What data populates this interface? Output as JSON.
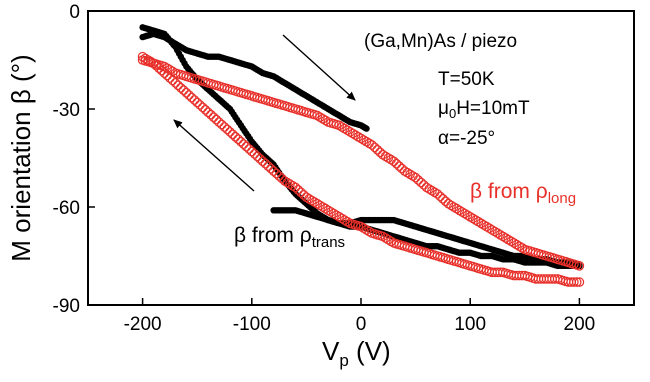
{
  "chart_data": {
    "type": "scatter",
    "xlabel": "V",
    "xlabel_sub": "p",
    "xlabel_unit": " (V)",
    "ylabel": "M orientation β (°)",
    "xlim": [
      -250,
      250
    ],
    "ylim": [
      -90,
      0
    ],
    "xticks": [
      -200,
      -100,
      0,
      100,
      200
    ],
    "yticks": [
      0,
      -30,
      -60,
      -90
    ],
    "grid": false,
    "colors": {
      "trans": "#000000",
      "long": "#e8302a"
    },
    "annotations": {
      "material": "(Ga,Mn)As / piezo",
      "temperature": "T=50K",
      "field_prefix": "μ",
      "field_sub": "0",
      "field_rest": "H=10mT",
      "angle": "α=-25°",
      "long_label_main": "β from ρ",
      "long_label_sub": "long",
      "trans_label_main": "β from ρ",
      "trans_label_sub": "trans"
    },
    "series": [
      {
        "marker": "filled-circle",
        "segments": [
          {
            "x": [
              -200,
              -190,
              -180,
              -170,
              -160,
              -150,
              -140,
              -130,
              -120,
              -110,
              -100,
              -90,
              -80,
              -70,
              -60,
              -50,
              -40,
              -30,
              -20,
              -10,
              0,
              5
            ],
            "y": [
              -8,
              -7,
              -8,
              -10,
              -12,
              -13,
              -14,
              -14,
              -15,
              -16,
              -17,
              -19,
              -20,
              -22,
              -24,
              -26,
              -28,
              -30,
              -32,
              -34,
              -35,
              -36
            ]
          },
          {
            "x": [
              -200,
              -190,
              -180,
              -170,
              -160,
              -150,
              -140,
              -130,
              -120,
              -110,
              -100,
              -90,
              -80,
              -70,
              -60,
              -50,
              -40,
              -30,
              -20,
              -10,
              0,
              10,
              20,
              30,
              40,
              50,
              60,
              70,
              80,
              90,
              100,
              110,
              120,
              130,
              140,
              150,
              160,
              170,
              180,
              190,
              200
            ],
            "y": [
              -5,
              -6,
              -7,
              -11,
              -17,
              -21,
              -24,
              -27,
              -30,
              -35,
              -40,
              -44,
              -47,
              -52,
              -56,
              -59,
              -62,
              -64,
              -65,
              -66,
              -66,
              -67,
              -68,
              -69,
              -70,
              -71,
              -72,
              -72,
              -73,
              -74,
              -74,
              -75,
              -75,
              -76,
              -76,
              -77,
              -77,
              -77,
              -78,
              -78,
              -78
            ]
          },
          {
            "x": [
              -80,
              -70,
              -60,
              -50,
              -40,
              -30,
              -20,
              -10,
              0,
              10,
              20,
              30,
              40,
              50,
              60,
              70,
              80,
              90,
              100,
              110,
              120,
              130,
              140,
              150,
              160,
              170,
              180,
              190,
              200
            ],
            "y": [
              -61,
              -61,
              -61,
              -62,
              -63,
              -64,
              -65,
              -65,
              -64,
              -64,
              -64,
              -64,
              -65,
              -66,
              -67,
              -68,
              -69,
              -70,
              -71,
              -72,
              -73,
              -74,
              -75,
              -75,
              -76,
              -76,
              -77,
              -77,
              -78
            ]
          }
        ]
      },
      {
        "marker": "open-circle",
        "segments": [
          {
            "x": [
              -200,
              -190,
              -180,
              -170,
              -160,
              -150,
              -140,
              -130,
              -120,
              -110,
              -100,
              -90,
              -80,
              -70,
              -60,
              -50,
              -40,
              -30,
              -20,
              -10,
              0,
              10,
              20,
              30,
              40,
              50,
              60,
              70,
              80,
              90,
              100,
              110,
              120,
              130,
              140,
              150,
              160,
              170,
              180,
              190,
              200
            ],
            "y": [
              -15,
              -16,
              -17,
              -19,
              -20,
              -21,
              -22,
              -23,
              -24,
              -25,
              -26,
              -27,
              -28,
              -29,
              -30,
              -31,
              -32,
              -34,
              -35,
              -37,
              -39,
              -41,
              -44,
              -46,
              -49,
              -51,
              -54,
              -56,
              -59,
              -61,
              -63,
              -65,
              -67,
              -69,
              -71,
              -73,
              -74,
              -75,
              -76,
              -77,
              -78
            ]
          },
          {
            "x": [
              -200,
              -190,
              -180,
              -170,
              -160,
              -150,
              -140,
              -130,
              -120,
              -110,
              -100,
              -90,
              -80,
              -70,
              -60,
              -50,
              -40,
              -30,
              -20,
              -10,
              0,
              10,
              20,
              30,
              40,
              50,
              60,
              70,
              80,
              90,
              100,
              110,
              120,
              130,
              140,
              150,
              160,
              170,
              180,
              190,
              200
            ],
            "y": [
              -14,
              -16,
              -19,
              -22,
              -25,
              -28,
              -31,
              -34,
              -37,
              -40,
              -43,
              -46,
              -49,
              -52,
              -54,
              -57,
              -59,
              -61,
              -63,
              -65,
              -66,
              -68,
              -69,
              -71,
              -72,
              -73,
              -74,
              -75,
              -76,
              -77,
              -78,
              -79,
              -80,
              -80,
              -81,
              -81,
              -82,
              -82,
              -82,
              -83,
              -83
            ]
          }
        ]
      }
    ]
  }
}
